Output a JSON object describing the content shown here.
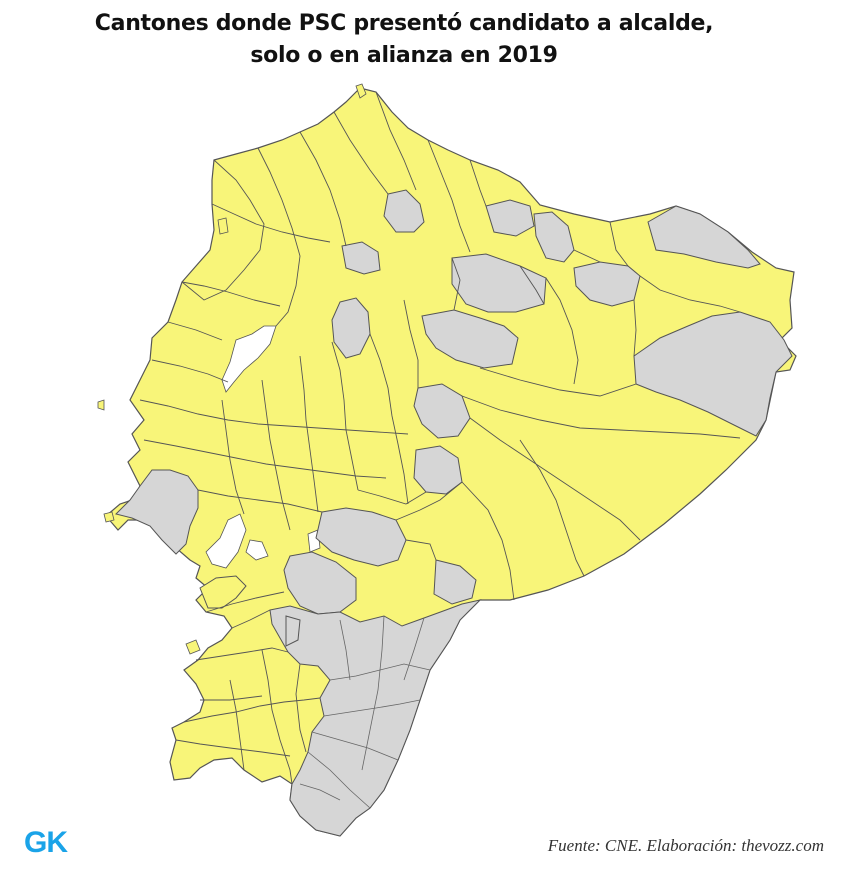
{
  "title": {
    "line1": "Cantones donde PSC presentó  candidato a  alcalde,",
    "line2": "solo o en alianza en 2019"
  },
  "legend_colors": {
    "with_candidate": "#f8f579",
    "without_candidate": "#d6d6d6",
    "border": "#555555"
  },
  "brand": "GK",
  "source": "Fuente: CNE. Elaboración: thevozz.com"
}
